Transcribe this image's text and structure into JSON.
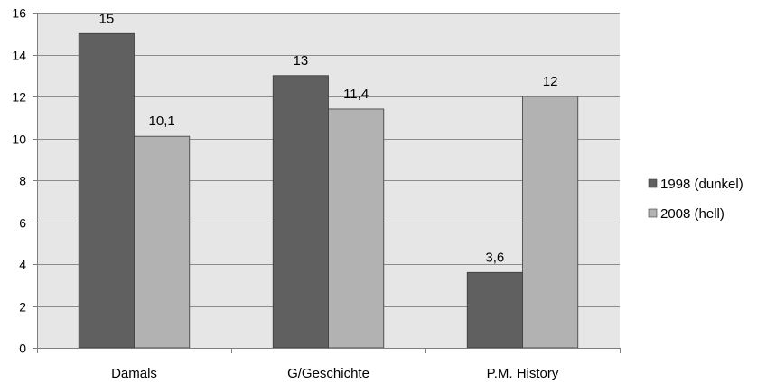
{
  "chart_data": {
    "type": "bar",
    "categories": [
      "Damals",
      "G/Geschichte",
      "P.M. History"
    ],
    "series": [
      {
        "name": "1998 (dunkel)",
        "values": [
          15,
          13,
          3.6
        ],
        "labels": [
          "15",
          "13",
          "3,6"
        ],
        "color": "#606060"
      },
      {
        "name": "2008 (hell)",
        "values": [
          10.1,
          11.4,
          12
        ],
        "labels": [
          "10,1",
          "11,4",
          "12"
        ],
        "color": "#b2b2b2"
      }
    ],
    "y_ticks": [
      "0",
      "2",
      "4",
      "6",
      "8",
      "10",
      "12",
      "14",
      "16"
    ],
    "ylim": [
      0,
      16
    ],
    "grid": true,
    "plot_background": "#e6e6e6",
    "legend_position": "right"
  }
}
